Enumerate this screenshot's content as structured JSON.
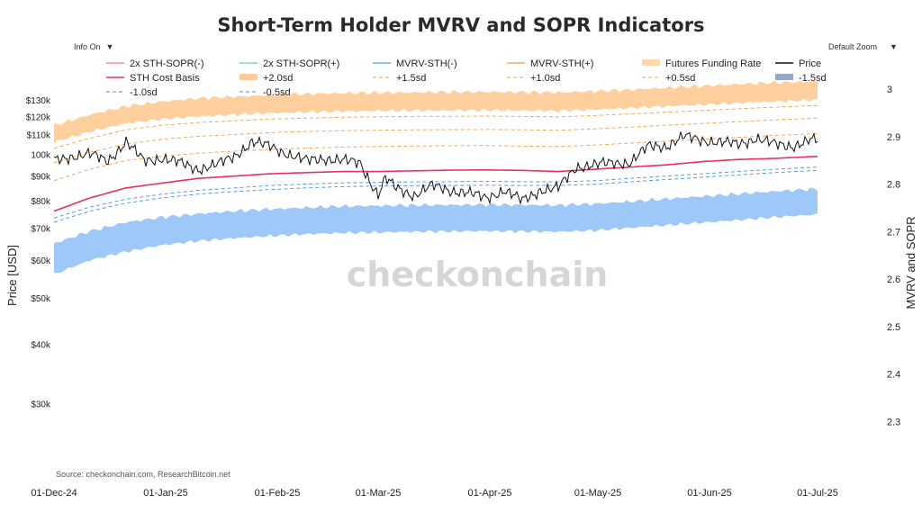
{
  "title": "Short-Term Holder MVRV and SOPR Indicators",
  "controls": {
    "info_label": "Info On",
    "zoom_label": "Default Zoom",
    "caret": "▼"
  },
  "source": "Source: checkonchain.com, ResearchBitcoin.net",
  "watermark": "checkonchain",
  "colors": {
    "price": "#111111",
    "cost_basis": "#e8305f",
    "upper_band": "#ffcc99",
    "lower_band": "#99c5f7",
    "sopr_neg": "#f08aa8",
    "sopr_pos": "#7fd6c3",
    "mvrv_neg": "#6aaee0",
    "mvrv_pos": "#f2a96a",
    "funding": "#fdd9b0",
    "sd_pos": "#f5a049",
    "sd_neg": "#4a8fd8",
    "minus15": "#9aa6c8"
  },
  "chart_data": {
    "type": "line",
    "title": "Short-Term Holder MVRV and SOPR Indicators",
    "xlabel": "",
    "ylabel": "Price [USD]",
    "y2label": "MVRV and SOPR",
    "y_scale": "log",
    "ylim": [
      24000,
      150000
    ],
    "y2lim": [
      2.24,
      3.04
    ],
    "x_ticks": [
      "01-Dec-24",
      "01-Jan-25",
      "01-Feb-25",
      "01-Mar-25",
      "01-Apr-25",
      "01-May-25",
      "01-Jun-25",
      "01-Jul-25"
    ],
    "y_ticks": [
      {
        "value": 30000,
        "label": "$30k"
      },
      {
        "value": 40000,
        "label": "$40k"
      },
      {
        "value": 50000,
        "label": "$50k"
      },
      {
        "value": 60000,
        "label": "$60k"
      },
      {
        "value": 70000,
        "label": "$70k"
      },
      {
        "value": 80000,
        "label": "$80k"
      },
      {
        "value": 90000,
        "label": "$90k"
      },
      {
        "value": 100000,
        "label": "100k"
      },
      {
        "value": 110000,
        "label": "$110k"
      },
      {
        "value": 120000,
        "label": "$120k"
      },
      {
        "value": 130000,
        "label": "$130k"
      }
    ],
    "y2_ticks": [
      "2.3",
      "2.4",
      "2.5",
      "2.6",
      "2.7",
      "2.8",
      "2.9",
      "3"
    ],
    "legend": {
      "position": "top",
      "entries": [
        {
          "label": "2x STH-SOPR(-)",
          "style": "line",
          "color": "#f08aa8"
        },
        {
          "label": "2x STH-SOPR(+)",
          "style": "line",
          "color": "#7fd6c3"
        },
        {
          "label": "MVRV-STH(-)",
          "style": "line",
          "color": "#6aaee0"
        },
        {
          "label": "MVRV-STH(+)",
          "style": "line",
          "color": "#f2a96a"
        },
        {
          "label": "Futures Funding Rate",
          "style": "band",
          "color": "#fdd9b0"
        },
        {
          "label": "Price",
          "style": "line",
          "color": "#111111"
        },
        {
          "label": "STH Cost Basis",
          "style": "line",
          "color": "#e8305f"
        },
        {
          "label": "+2.0sd",
          "style": "band",
          "color": "#ffcc99"
        },
        {
          "label": "+1.5sd",
          "style": "dash",
          "color": "#f5a049"
        },
        {
          "label": "+1.0sd",
          "style": "dash",
          "color": "#f5a049"
        },
        {
          "label": "+0.5sd",
          "style": "dash",
          "color": "#f5a049"
        },
        {
          "label": "-1.5sd",
          "style": "band",
          "color": "#9aa6c8"
        },
        {
          "label": "-1.0sd",
          "style": "dash",
          "color": "#4a8fd8"
        },
        {
          "label": "-0.5sd",
          "style": "dash",
          "color": "#4a8fd8"
        }
      ]
    },
    "series": [
      {
        "name": "Price",
        "x": [
          0,
          5,
          10,
          15,
          20,
          25,
          30,
          35,
          40,
          45,
          50,
          55,
          60,
          65,
          70,
          75,
          80,
          85,
          88,
          90,
          92,
          95,
          100,
          105,
          110,
          115,
          120,
          125,
          130,
          135,
          140,
          145,
          150,
          155,
          160,
          165,
          170,
          175,
          180,
          185,
          190,
          195,
          200,
          205,
          210,
          212
        ],
        "values": [
          97000,
          99000,
          100000,
          97000,
          106000,
          97000,
          98000,
          96000,
          93000,
          95000,
          99000,
          106000,
          104000,
          100000,
          97000,
          98000,
          97000,
          96000,
          87000,
          82000,
          89000,
          85000,
          82000,
          86000,
          84000,
          83000,
          81000,
          84000,
          80000,
          84000,
          85000,
          94000,
          95000,
          96000,
          96000,
          104000,
          104000,
          109000,
          107000,
          106000,
          105000,
          108000,
          105000,
          104000,
          107000,
          107000
        ]
      },
      {
        "name": "STH Cost Basis",
        "x": [
          0,
          10,
          20,
          30,
          40,
          50,
          60,
          70,
          80,
          90,
          100,
          110,
          120,
          130,
          140,
          150,
          160,
          170,
          180,
          190,
          200,
          212
        ],
        "values": [
          76000,
          81000,
          85000,
          87000,
          89000,
          90000,
          91000,
          91500,
          92000,
          92000,
          92300,
          92600,
          92700,
          92500,
          92000,
          93000,
          94000,
          95000,
          96500,
          97500,
          98000,
          99000
        ]
      },
      {
        "name": "-1.0sd",
        "x": [
          0,
          10,
          20,
          30,
          40,
          50,
          60,
          70,
          80,
          90,
          100,
          110,
          120,
          130,
          140,
          150,
          160,
          170,
          180,
          190,
          200,
          212
        ],
        "values": [
          72000,
          76000,
          79000,
          81000,
          82500,
          83500,
          84300,
          85000,
          85500,
          85800,
          85900,
          86000,
          86100,
          86000,
          86000,
          86500,
          87500,
          88500,
          89500,
          90500,
          91500,
          92500
        ]
      },
      {
        "name": "-0.5sd",
        "x": [
          0,
          10,
          20,
          30,
          40,
          50,
          60,
          70,
          80,
          90,
          100,
          110,
          120,
          130,
          140,
          150,
          160,
          170,
          180,
          190,
          200,
          212
        ],
        "values": [
          73500,
          77500,
          80500,
          82500,
          84000,
          85000,
          86000,
          86600,
          87100,
          87300,
          87500,
          87600,
          87700,
          87600,
          87500,
          88000,
          89000,
          90000,
          91000,
          92000,
          93000,
          94000
        ]
      },
      {
        "name": "+0.5sd",
        "x": [
          0,
          10,
          20,
          30,
          40,
          50,
          60,
          70,
          80,
          90,
          100,
          110,
          120,
          130,
          140,
          150,
          160,
          170,
          180,
          190,
          200,
          212
        ],
        "values": [
          88000,
          93000,
          97000,
          99000,
          100500,
          101500,
          102300,
          103000,
          103500,
          103800,
          104000,
          104200,
          104300,
          104000,
          103800,
          104500,
          105500,
          106500,
          107500,
          108500,
          109500,
          110500
        ]
      },
      {
        "name": "+1.0sd",
        "x": [
          0,
          10,
          20,
          30,
          40,
          50,
          60,
          70,
          80,
          90,
          100,
          110,
          120,
          130,
          140,
          150,
          160,
          170,
          180,
          190,
          200,
          212
        ],
        "values": [
          96000,
          101000,
          105000,
          107500,
          109000,
          110000,
          111000,
          111600,
          112000,
          112300,
          112500,
          112600,
          112700,
          112500,
          112300,
          113000,
          114000,
          115000,
          116000,
          117000,
          118000,
          119000
        ]
      },
      {
        "name": "+1.5sd",
        "x": [
          0,
          10,
          20,
          30,
          40,
          50,
          60,
          70,
          80,
          90,
          100,
          110,
          120,
          130,
          140,
          150,
          160,
          170,
          180,
          190,
          200,
          212
        ],
        "values": [
          103000,
          108000,
          112500,
          115000,
          116500,
          117500,
          118500,
          119000,
          119500,
          119800,
          120000,
          120100,
          120200,
          120000,
          119800,
          120500,
          121500,
          122500,
          123500,
          124500,
          125500,
          126500
        ]
      },
      {
        "name": "+2.0sd band",
        "type": "band",
        "x": [
          0,
          10,
          20,
          30,
          40,
          50,
          60,
          70,
          80,
          90,
          100,
          110,
          120,
          130,
          140,
          150,
          160,
          170,
          180,
          190,
          200,
          212
        ],
        "upper": [
          115000,
          121000,
          126000,
          129000,
          131000,
          132000,
          133000,
          133800,
          134300,
          134600,
          134800,
          135000,
          135100,
          134900,
          134700,
          135500,
          136500,
          137800,
          139000,
          140200,
          141300,
          142000
        ],
        "lower": [
          106000,
          111500,
          116000,
          118500,
          120000,
          121000,
          122000,
          122500,
          123000,
          123300,
          123500,
          123600,
          123700,
          123500,
          123300,
          124000,
          125000,
          126000,
          127000,
          128000,
          129000,
          130000
        ]
      },
      {
        "name": "-1.5sd band",
        "type": "band",
        "x": [
          0,
          10,
          20,
          30,
          40,
          50,
          60,
          70,
          80,
          90,
          100,
          110,
          120,
          130,
          140,
          150,
          160,
          170,
          180,
          190,
          200,
          212
        ],
        "upper": [
          65000,
          69000,
          72000,
          73800,
          75000,
          76000,
          76700,
          77300,
          77800,
          78000,
          78200,
          78300,
          78400,
          78300,
          78200,
          78700,
          79600,
          80600,
          81600,
          82600,
          83600,
          84600
        ],
        "lower": [
          56000,
          60000,
          62500,
          64500,
          65800,
          66700,
          67400,
          68000,
          68400,
          68600,
          68800,
          68900,
          69000,
          68900,
          68800,
          69200,
          70100,
          71000,
          71900,
          72800,
          73800,
          74800
        ]
      }
    ]
  }
}
